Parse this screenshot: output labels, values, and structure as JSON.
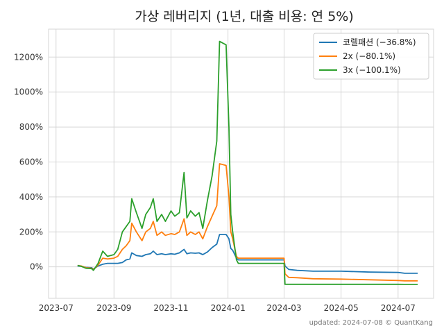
{
  "chart_data": {
    "type": "line",
    "title": "가상 레버리지 (1년, 대출 비용: 연 5%)",
    "footer": "updated: 2024-07-08 © QuantKang",
    "xlabel": "",
    "ylabel": "",
    "x_ticks": [
      "2023-07",
      "2023-09",
      "2023-11",
      "2024-01",
      "2024-03",
      "2024-05",
      "2024-07"
    ],
    "y_ticks": [
      "0%",
      "200%",
      "400%",
      "600%",
      "800%",
      "1000%",
      "1200%"
    ],
    "xlim": [
      "2023-06-23",
      "2024-08-08"
    ],
    "ylim": [
      -180,
      1360
    ],
    "grid": true,
    "legend_position": "top-right",
    "series": [
      {
        "name": "코렐패션 (−36.8%)",
        "color": "#1f77b4",
        "points": [
          [
            "2023-07-24",
            5
          ],
          [
            "2023-07-28",
            3
          ],
          [
            "2023-08-02",
            -3
          ],
          [
            "2023-08-08",
            -5
          ],
          [
            "2023-08-10",
            -12
          ],
          [
            "2023-08-15",
            5
          ],
          [
            "2023-08-20",
            15
          ],
          [
            "2023-08-25",
            20
          ],
          [
            "2023-09-01",
            20
          ],
          [
            "2023-09-05",
            20
          ],
          [
            "2023-09-10",
            25
          ],
          [
            "2023-09-14",
            40
          ],
          [
            "2023-09-18",
            45
          ],
          [
            "2023-09-20",
            80
          ],
          [
            "2023-09-25",
            65
          ],
          [
            "2023-10-01",
            60
          ],
          [
            "2023-10-05",
            70
          ],
          [
            "2023-10-10",
            75
          ],
          [
            "2023-10-13",
            90
          ],
          [
            "2023-10-17",
            70
          ],
          [
            "2023-10-22",
            75
          ],
          [
            "2023-10-26",
            70
          ],
          [
            "2023-11-01",
            75
          ],
          [
            "2023-11-05",
            72
          ],
          [
            "2023-11-10",
            80
          ],
          [
            "2023-11-15",
            100
          ],
          [
            "2023-11-18",
            75
          ],
          [
            "2023-11-22",
            80
          ],
          [
            "2023-11-27",
            78
          ],
          [
            "2023-12-01",
            80
          ],
          [
            "2023-12-05",
            70
          ],
          [
            "2023-12-10",
            85
          ],
          [
            "2023-12-15",
            110
          ],
          [
            "2023-12-20",
            130
          ],
          [
            "2023-12-23",
            185
          ],
          [
            "2023-12-30",
            185
          ],
          [
            "2024-01-02",
            160
          ],
          [
            "2024-01-04",
            105
          ],
          [
            "2024-01-06",
            95
          ],
          [
            "2024-01-10",
            50
          ],
          [
            "2024-01-12",
            40
          ],
          [
            "2024-03-01",
            40
          ],
          [
            "2024-03-02",
            5
          ],
          [
            "2024-03-06",
            -15
          ],
          [
            "2024-03-15",
            -20
          ],
          [
            "2024-04-01",
            -25
          ],
          [
            "2024-05-01",
            -25
          ],
          [
            "2024-06-01",
            -30
          ],
          [
            "2024-07-01",
            -32
          ],
          [
            "2024-07-08",
            -36.8
          ],
          [
            "2024-07-22",
            -36.8
          ]
        ]
      },
      {
        "name": "2x (−80.1%)",
        "color": "#ff7f0e",
        "points": [
          [
            "2023-07-24",
            8
          ],
          [
            "2023-07-28",
            5
          ],
          [
            "2023-08-02",
            -5
          ],
          [
            "2023-08-08",
            -8
          ],
          [
            "2023-08-10",
            -15
          ],
          [
            "2023-08-15",
            10
          ],
          [
            "2023-08-20",
            50
          ],
          [
            "2023-08-25",
            45
          ],
          [
            "2023-09-01",
            50
          ],
          [
            "2023-09-05",
            60
          ],
          [
            "2023-09-10",
            100
          ],
          [
            "2023-09-14",
            120
          ],
          [
            "2023-09-18",
            150
          ],
          [
            "2023-09-20",
            250
          ],
          [
            "2023-09-25",
            200
          ],
          [
            "2023-10-01",
            150
          ],
          [
            "2023-10-05",
            200
          ],
          [
            "2023-10-10",
            220
          ],
          [
            "2023-10-13",
            260
          ],
          [
            "2023-10-17",
            180
          ],
          [
            "2023-10-22",
            200
          ],
          [
            "2023-10-26",
            180
          ],
          [
            "2023-11-01",
            190
          ],
          [
            "2023-11-05",
            185
          ],
          [
            "2023-11-10",
            200
          ],
          [
            "2023-11-15",
            275
          ],
          [
            "2023-11-18",
            180
          ],
          [
            "2023-11-22",
            200
          ],
          [
            "2023-11-27",
            185
          ],
          [
            "2023-12-01",
            200
          ],
          [
            "2023-12-05",
            160
          ],
          [
            "2023-12-10",
            230
          ],
          [
            "2023-12-15",
            290
          ],
          [
            "2023-12-20",
            350
          ],
          [
            "2023-12-23",
            590
          ],
          [
            "2023-12-30",
            580
          ],
          [
            "2024-01-02",
            400
          ],
          [
            "2024-01-04",
            200
          ],
          [
            "2024-01-06",
            160
          ],
          [
            "2024-01-10",
            60
          ],
          [
            "2024-01-12",
            50
          ],
          [
            "2024-03-01",
            50
          ],
          [
            "2024-03-02",
            -40
          ],
          [
            "2024-03-06",
            -60
          ],
          [
            "2024-03-15",
            -62
          ],
          [
            "2024-04-01",
            -68
          ],
          [
            "2024-05-01",
            -70
          ],
          [
            "2024-06-01",
            -74
          ],
          [
            "2024-07-01",
            -78
          ],
          [
            "2024-07-08",
            -80.1
          ],
          [
            "2024-07-22",
            -80.1
          ]
        ]
      },
      {
        "name": "3x (−100.1%)",
        "color": "#2ca02c",
        "points": [
          [
            "2023-07-24",
            8
          ],
          [
            "2023-07-28",
            3
          ],
          [
            "2023-08-02",
            -8
          ],
          [
            "2023-08-08",
            -10
          ],
          [
            "2023-08-10",
            -20
          ],
          [
            "2023-08-15",
            20
          ],
          [
            "2023-08-20",
            90
          ],
          [
            "2023-08-25",
            60
          ],
          [
            "2023-09-01",
            70
          ],
          [
            "2023-09-05",
            100
          ],
          [
            "2023-09-10",
            200
          ],
          [
            "2023-09-14",
            230
          ],
          [
            "2023-09-18",
            260
          ],
          [
            "2023-09-20",
            390
          ],
          [
            "2023-09-25",
            310
          ],
          [
            "2023-10-01",
            220
          ],
          [
            "2023-10-05",
            300
          ],
          [
            "2023-10-10",
            340
          ],
          [
            "2023-10-13",
            390
          ],
          [
            "2023-10-17",
            260
          ],
          [
            "2023-10-22",
            300
          ],
          [
            "2023-10-26",
            260
          ],
          [
            "2023-11-01",
            320
          ],
          [
            "2023-11-05",
            290
          ],
          [
            "2023-11-10",
            310
          ],
          [
            "2023-11-15",
            540
          ],
          [
            "2023-11-18",
            280
          ],
          [
            "2023-11-22",
            320
          ],
          [
            "2023-11-27",
            290
          ],
          [
            "2023-12-01",
            310
          ],
          [
            "2023-12-05",
            220
          ],
          [
            "2023-12-10",
            380
          ],
          [
            "2023-12-15",
            520
          ],
          [
            "2023-12-20",
            720
          ],
          [
            "2023-12-23",
            1290
          ],
          [
            "2023-12-30",
            1270
          ],
          [
            "2024-01-02",
            800
          ],
          [
            "2024-01-04",
            300
          ],
          [
            "2024-01-06",
            200
          ],
          [
            "2024-01-10",
            40
          ],
          [
            "2024-01-12",
            20
          ],
          [
            "2024-03-01",
            20
          ],
          [
            "2024-03-02",
            -100
          ],
          [
            "2024-03-15",
            -100
          ],
          [
            "2024-04-01",
            -100
          ],
          [
            "2024-05-01",
            -100
          ],
          [
            "2024-06-01",
            -100
          ],
          [
            "2024-07-01",
            -100
          ],
          [
            "2024-07-08",
            -100.1
          ],
          [
            "2024-07-22",
            -100.1
          ]
        ]
      }
    ]
  }
}
